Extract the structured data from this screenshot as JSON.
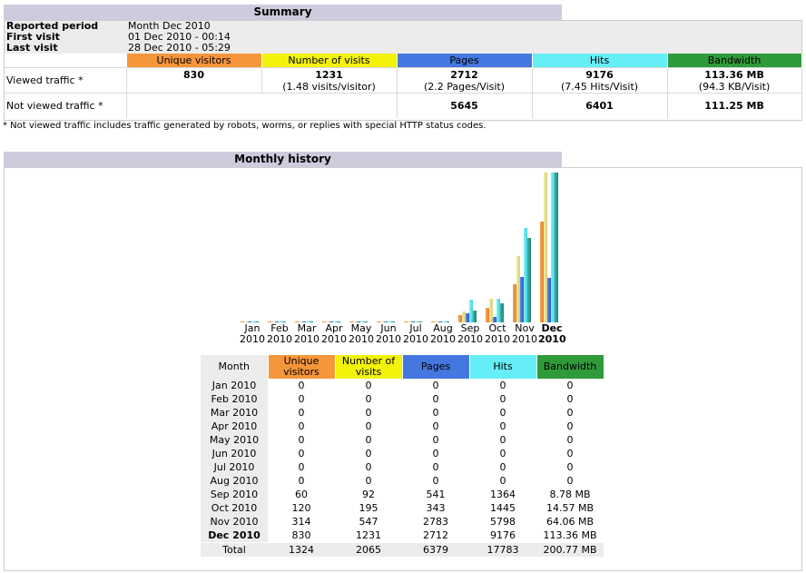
{
  "summary": {
    "title": "Summary",
    "reported_period_label": "Reported period",
    "reported_period_value": "Month Dec 2010",
    "first_visit_label": "First visit",
    "first_visit_value": "01 Dec 2010 - 00:14",
    "last_visit_label": "Last visit",
    "last_visit_value": "28 Dec 2010 - 05:29",
    "headers": {
      "unique_visitors": "Unique visitors",
      "visits": "Number of visits",
      "pages": "Pages",
      "hits": "Hits",
      "bandwidth": "Bandwidth"
    },
    "viewed": {
      "label": "Viewed traffic *",
      "unique_visitors": "830",
      "visits": "1231",
      "visits_sub": "(1.48 visits/visitor)",
      "pages": "2712",
      "pages_sub": "(2.2 Pages/Visit)",
      "hits": "9176",
      "hits_sub": "(7.45 Hits/Visit)",
      "bandwidth": "113.36 MB",
      "bandwidth_sub": "(94.3 KB/Visit)"
    },
    "not_viewed": {
      "label": "Not viewed traffic *",
      "pages": "5645",
      "hits": "6401",
      "bandwidth": "111.25 MB"
    },
    "footnote": "* Not viewed traffic includes traffic generated by robots, worms, or replies with special HTTP status codes."
  },
  "history": {
    "title": "Monthly history",
    "headers": {
      "month": "Month",
      "unique_visitors": "Unique visitors",
      "visits": "Number of visits",
      "pages": "Pages",
      "hits": "Hits",
      "bandwidth": "Bandwidth"
    },
    "rows": [
      {
        "month": "Jan 2010",
        "uv": "0",
        "visits": "0",
        "pages": "0",
        "hits": "0",
        "bw": "0"
      },
      {
        "month": "Feb 2010",
        "uv": "0",
        "visits": "0",
        "pages": "0",
        "hits": "0",
        "bw": "0"
      },
      {
        "month": "Mar 2010",
        "uv": "0",
        "visits": "0",
        "pages": "0",
        "hits": "0",
        "bw": "0"
      },
      {
        "month": "Apr 2010",
        "uv": "0",
        "visits": "0",
        "pages": "0",
        "hits": "0",
        "bw": "0"
      },
      {
        "month": "May 2010",
        "uv": "0",
        "visits": "0",
        "pages": "0",
        "hits": "0",
        "bw": "0"
      },
      {
        "month": "Jun 2010",
        "uv": "0",
        "visits": "0",
        "pages": "0",
        "hits": "0",
        "bw": "0"
      },
      {
        "month": "Jul 2010",
        "uv": "0",
        "visits": "0",
        "pages": "0",
        "hits": "0",
        "bw": "0"
      },
      {
        "month": "Aug 2010",
        "uv": "0",
        "visits": "0",
        "pages": "0",
        "hits": "0",
        "bw": "0"
      },
      {
        "month": "Sep 2010",
        "uv": "60",
        "visits": "92",
        "pages": "541",
        "hits": "1364",
        "bw": "8.78 MB"
      },
      {
        "month": "Oct 2010",
        "uv": "120",
        "visits": "195",
        "pages": "343",
        "hits": "1445",
        "bw": "14.57 MB"
      },
      {
        "month": "Nov 2010",
        "uv": "314",
        "visits": "547",
        "pages": "2783",
        "hits": "5798",
        "bw": "64.06 MB"
      },
      {
        "month": "Dec 2010",
        "uv": "830",
        "visits": "1231",
        "pages": "2712",
        "hits": "9176",
        "bw": "113.36 MB"
      }
    ],
    "total": {
      "label": "Total",
      "uv": "1324",
      "visits": "2065",
      "pages": "6379",
      "hits": "17783",
      "bw": "200.77 MB"
    },
    "current_month_index": 11
  },
  "chart_data": {
    "type": "bar",
    "categories": [
      "Jan 2010",
      "Feb 2010",
      "Mar 2010",
      "Apr 2010",
      "May 2010",
      "Jun 2010",
      "Jul 2010",
      "Aug 2010",
      "Sep 2010",
      "Oct 2010",
      "Nov 2010",
      "Dec 2010"
    ],
    "category_lines": [
      [
        "Jan",
        "2010"
      ],
      [
        "Feb",
        "2010"
      ],
      [
        "Mar",
        "2010"
      ],
      [
        "Apr",
        "2010"
      ],
      [
        "May",
        "2010"
      ],
      [
        "Jun",
        "2010"
      ],
      [
        "Jul",
        "2010"
      ],
      [
        "Aug",
        "2010"
      ],
      [
        "Sep",
        "2010"
      ],
      [
        "Oct",
        "2010"
      ],
      [
        "Nov",
        "2010"
      ],
      [
        "Dec",
        "2010"
      ]
    ],
    "series": [
      {
        "key": "uv",
        "values": [
          0,
          0,
          0,
          0,
          0,
          0,
          0,
          0,
          60,
          120,
          314,
          830
        ],
        "color": "#f6963b"
      },
      {
        "key": "visits",
        "values": [
          0,
          0,
          0,
          0,
          0,
          0,
          0,
          0,
          92,
          195,
          547,
          1231
        ],
        "color": "#f2f20a"
      },
      {
        "key": "pages",
        "values": [
          0,
          0,
          0,
          0,
          0,
          0,
          0,
          0,
          541,
          343,
          2783,
          2712
        ],
        "color": "#4577e0"
      },
      {
        "key": "hits",
        "values": [
          0,
          0,
          0,
          0,
          0,
          0,
          0,
          0,
          1364,
          1445,
          5798,
          9176
        ],
        "color": "#66eef6"
      },
      {
        "key": "bw",
        "values": [
          0,
          0,
          0,
          0,
          0,
          0,
          0,
          0,
          8.78,
          14.57,
          64.06,
          113.36
        ],
        "color": "#2f9a3a"
      }
    ]
  }
}
